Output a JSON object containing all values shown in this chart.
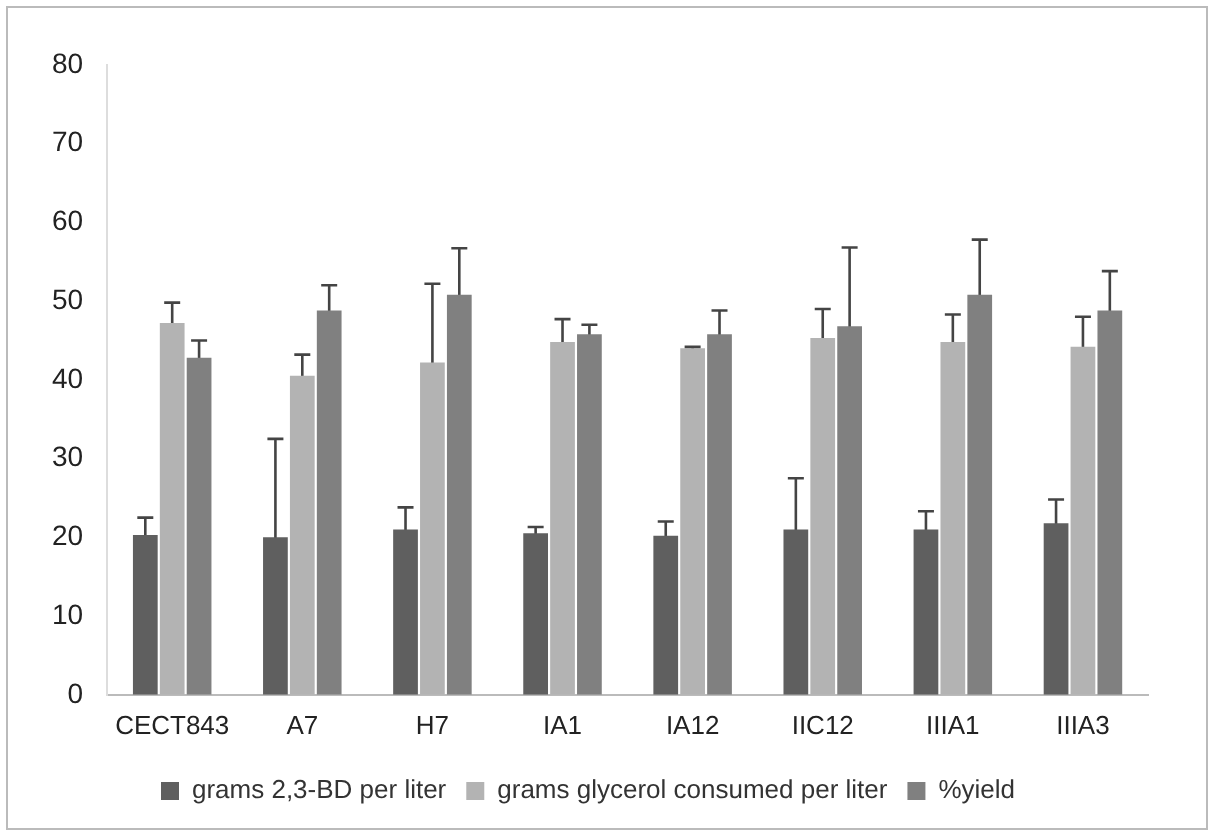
{
  "chart_data": {
    "type": "bar",
    "categories": [
      "CECT843",
      "A7",
      "H7",
      "IA1",
      "IA12",
      "IIC12",
      "IIIA1",
      "IIIA3"
    ],
    "series": [
      {
        "name": "grams 2,3-BD per liter",
        "color": "#5f5f5f",
        "values": [
          20.3,
          20,
          21,
          20.5,
          20.2,
          21,
          21,
          21.8
        ],
        "errors": [
          2.2,
          12.5,
          2.8,
          0.8,
          1.8,
          6.5,
          2.3,
          3
        ]
      },
      {
        "name": "grams glycerol consumed per liter",
        "color": "#b3b3b3",
        "values": [
          47.2,
          40.5,
          42.2,
          44.8,
          44,
          45.3,
          44.8,
          44.2
        ],
        "errors": [
          2.6,
          2.7,
          10,
          2.9,
          0.2,
          3.7,
          3.5,
          3.8
        ]
      },
      {
        "name": "%yield",
        "color": "#808080",
        "values": [
          42.8,
          48.8,
          50.8,
          45.8,
          45.8,
          46.8,
          50.8,
          48.8
        ],
        "errors": [
          2.2,
          3.2,
          5.9,
          1.2,
          3,
          10,
          7,
          5
        ]
      }
    ],
    "ylim": [
      0,
      80
    ],
    "yticks": [
      0,
      10,
      20,
      30,
      40,
      50,
      60,
      70,
      80
    ],
    "grid": false,
    "legend": "bottom"
  }
}
